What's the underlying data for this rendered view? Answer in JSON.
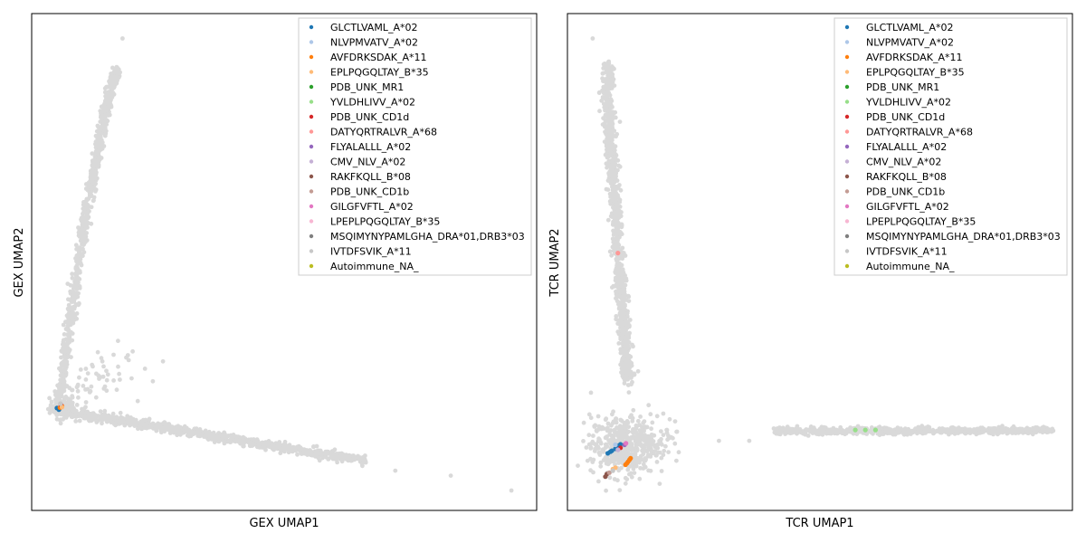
{
  "palette": [
    "#1f77b4",
    "#aec7e8",
    "#ff7f0e",
    "#ffbb78",
    "#2ca02c",
    "#98df8a",
    "#d62728",
    "#ff9896",
    "#9467bd",
    "#c5b0d5",
    "#8c564b",
    "#c49c94",
    "#e377c2",
    "#f7b6d2",
    "#7f7f7f",
    "#c7c7c7",
    "#bcbd22"
  ],
  "background_color": "#d9d9d9",
  "chart_data": [
    {
      "type": "scatter",
      "xlabel": "GEX UMAP1",
      "ylabel": "GEX UMAP2",
      "xlim": [
        0,
        100
      ],
      "ylim": [
        0,
        100
      ],
      "grid": false,
      "ticks": false,
      "legend_position": "top-right",
      "legend": [
        "GLCTLVAML_A*02",
        "NLVPMVATV_A*02",
        "AVFDRKSDAK_A*11",
        "EPLPQGQLTAY_B*35",
        "PDB_UNK_MR1",
        "YVLDHLIVV_A*02",
        "PDB_UNK_CD1d",
        "DATYQRTRALVR_A*68",
        "FLYALALLL_A*02",
        "CMV_NLV_A*02",
        "RAKFKQLL_B*08",
        "PDB_UNK_CD1b",
        "GILGFVFTL_A*02",
        "LPEPLPQGQLTAY_B*35",
        "MSQIMYNYPAMLGHA_DRA*01,DRB3*03",
        "IVTDFSVIK_A*11",
        "Autoimmune_NA_"
      ],
      "background_structure": {
        "arm_vertical": [
          [
            5,
            20
          ],
          [
            6,
            26
          ],
          [
            7,
            33
          ],
          [
            8,
            40
          ],
          [
            9,
            48
          ],
          [
            10,
            55
          ],
          [
            11,
            61
          ],
          [
            12,
            67
          ],
          [
            13,
            72
          ],
          [
            14,
            77
          ],
          [
            15,
            82
          ],
          [
            16,
            86
          ],
          [
            17,
            89
          ]
        ],
        "arm_diagonal": [
          [
            6,
            20
          ],
          [
            12,
            19
          ],
          [
            18,
            18
          ],
          [
            24,
            17
          ],
          [
            30,
            16
          ],
          [
            36,
            15
          ],
          [
            42,
            14
          ],
          [
            48,
            13
          ],
          [
            54,
            12
          ],
          [
            60,
            11
          ],
          [
            66,
            10
          ]
        ],
        "outliers": [
          [
            18,
            95
          ],
          [
            17,
            89
          ],
          [
            72,
            8
          ],
          [
            83,
            7
          ],
          [
            95,
            4
          ],
          [
            26,
            30
          ],
          [
            20,
            32
          ],
          [
            14,
            30
          ],
          [
            24,
            26
          ],
          [
            21,
            22
          ]
        ]
      },
      "series": [
        {
          "name": "GLCTLVAML_A*02",
          "points": [
            [
              5,
              20.6
            ],
            [
              5.4,
              20.3
            ]
          ]
        },
        {
          "name": "AVFDRKSDAK_A*11",
          "points": [
            [
              5.6,
              20.7
            ],
            [
              6,
              21
            ]
          ]
        },
        {
          "name": "PDB_UNK_CD1d",
          "points": [
            [
              5.8,
              21.2
            ]
          ]
        },
        {
          "name": "EPLPQGQLTAY_B*35",
          "points": [
            [
              6,
              20.8
            ]
          ]
        },
        {
          "name": "IVTDFSVIK_A*11",
          "points": [
            [
              5.7,
              21.5
            ]
          ]
        }
      ]
    },
    {
      "type": "scatter",
      "xlabel": "TCR UMAP1",
      "ylabel": "TCR UMAP2",
      "xlim": [
        0,
        100
      ],
      "ylim": [
        0,
        100
      ],
      "grid": false,
      "ticks": false,
      "legend_position": "top-right",
      "legend": [
        "GLCTLVAML_A*02",
        "NLVPMVATV_A*02",
        "AVFDRKSDAK_A*11",
        "EPLPQGQLTAY_B*35",
        "PDB_UNK_MR1",
        "YVLDHLIVV_A*02",
        "PDB_UNK_CD1d",
        "DATYQRTRALVR_A*68",
        "FLYALALLL_A*02",
        "CMV_NLV_A*02",
        "RAKFKQLL_B*08",
        "PDB_UNK_CD1b",
        "GILGFVFTL_A*02",
        "LPEPLPQGQLTAY_B*35",
        "MSQIMYNYPAMLGHA_DRA*01,DRB3*03",
        "IVTDFSVIK_A*11",
        "Autoimmune_NA_"
      ],
      "background_structure": {
        "arm_vertical": [
          [
            8,
            90
          ],
          [
            8,
            82
          ],
          [
            8.5,
            75
          ],
          [
            9,
            68
          ],
          [
            9.5,
            60
          ],
          [
            10,
            52
          ],
          [
            10.5,
            45
          ],
          [
            11,
            38
          ],
          [
            11.5,
            32
          ],
          [
            12,
            26
          ]
        ],
        "arm_horizontal": [
          [
            41,
            16
          ],
          [
            48,
            16
          ],
          [
            55,
            16
          ],
          [
            62,
            16
          ],
          [
            69,
            16
          ],
          [
            76,
            16
          ],
          [
            83,
            16
          ],
          [
            90,
            16
          ],
          [
            96,
            16.2
          ]
        ],
        "blob_center": [
          11,
          13
        ],
        "outliers": [
          [
            5,
            95
          ],
          [
            13,
            33
          ],
          [
            14,
            28
          ],
          [
            30,
            14
          ],
          [
            36,
            14
          ],
          [
            4,
            10
          ]
        ]
      },
      "series": [
        {
          "name": "GLCTLVAML_A*02",
          "points": [
            [
              8,
              11.5
            ],
            [
              8.8,
              12
            ],
            [
              9.5,
              12.4
            ],
            [
              10,
              13
            ],
            [
              10.5,
              13.3
            ],
            [
              8.5,
              11.8
            ]
          ]
        },
        {
          "name": "NLVPMVATV_A*02",
          "points": [
            [
              9.5,
              13.2
            ]
          ]
        },
        {
          "name": "AVFDRKSDAK_A*11",
          "points": [
            [
              11.5,
              9.2
            ],
            [
              12,
              9.8
            ],
            [
              12.3,
              10.2
            ],
            [
              11.8,
              9.5
            ],
            [
              12.5,
              10.5
            ]
          ]
        },
        {
          "name": "EPLPQGQLTAY_B*35",
          "points": [
            [
              9.5,
              8.6
            ],
            [
              9,
              8.3
            ]
          ]
        },
        {
          "name": "YVLDHLIVV_A*02",
          "points": [
            [
              57,
              16.2
            ],
            [
              59,
              16.2
            ],
            [
              61,
              16.2
            ]
          ]
        },
        {
          "name": "PDB_UNK_CD1d",
          "points": [
            [
              10.5,
              12.6
            ]
          ]
        },
        {
          "name": "DATYQRTRALVR_A*68",
          "points": [
            [
              10,
              51.8
            ]
          ]
        },
        {
          "name": "FLYALALLL_A*02",
          "points": [
            [
              11.3,
              13.2
            ]
          ]
        },
        {
          "name": "CMV_NLV_A*02",
          "points": [
            [
              10,
              12.2
            ]
          ]
        },
        {
          "name": "RAKFKQLL_B*08",
          "points": [
            [
              7.5,
              6.8
            ],
            [
              7.8,
              7.3
            ]
          ]
        },
        {
          "name": "PDB_UNK_CD1b",
          "points": [
            [
              8.3,
              7.6
            ]
          ]
        },
        {
          "name": "GILGFVFTL_A*02",
          "points": [
            [
              11.6,
              13.5
            ]
          ]
        },
        {
          "name": "IVTDFSVIK_A*11",
          "points": [
            [
              9,
              8
            ]
          ]
        }
      ]
    }
  ]
}
